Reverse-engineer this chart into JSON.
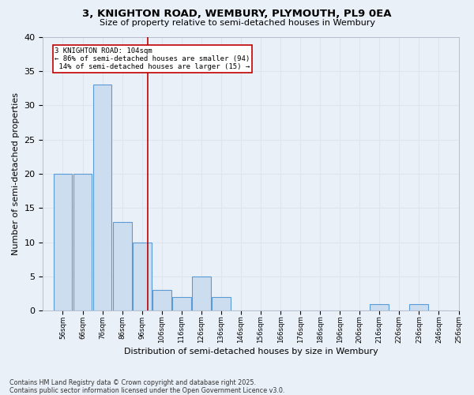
{
  "title_line1": "3, KNIGHTON ROAD, WEMBURY, PLYMOUTH, PL9 0EA",
  "title_line2": "Size of property relative to semi-detached houses in Wembury",
  "bins_left": [
    56,
    66,
    76,
    86,
    96,
    106,
    116,
    126,
    136,
    146,
    156,
    166,
    176,
    186,
    196,
    206,
    216,
    226,
    236,
    246
  ],
  "counts": [
    20,
    20,
    33,
    13,
    10,
    3,
    2,
    5,
    2,
    0,
    0,
    0,
    0,
    0,
    0,
    0,
    1,
    0,
    1,
    0
  ],
  "bar_color": "#ccddf0",
  "bar_edge_color": "#5b9bd5",
  "grid_color": "#dce6f1",
  "vline_x": 104,
  "vline_color": "#c00000",
  "annotation_line1": "3 KNIGHTON ROAD: 104sqm",
  "annotation_line2": "← 86% of semi-detached houses are smaller (94)",
  "annotation_line3": " 14% of semi-detached houses are larger (15) →",
  "annotation_box_color": "#ffffff",
  "annotation_box_edge": "#c00000",
  "xlabel": "Distribution of semi-detached houses by size in Wembury",
  "ylabel": "Number of semi-detached properties",
  "tick_labels": [
    "56sqm",
    "66sqm",
    "76sqm",
    "86sqm",
    "96sqm",
    "106sqm",
    "116sqm",
    "126sqm",
    "136sqm",
    "146sqm",
    "156sqm",
    "166sqm",
    "176sqm",
    "186sqm",
    "196sqm",
    "206sqm",
    "216sqm",
    "226sqm",
    "236sqm",
    "246sqm",
    "256sqm"
  ],
  "footnote_line1": "Contains HM Land Registry data © Crown copyright and database right 2025.",
  "footnote_line2": "Contains public sector information licensed under the Open Government Licence v3.0.",
  "ylim": [
    0,
    40
  ],
  "yticks": [
    0,
    5,
    10,
    15,
    20,
    25,
    30,
    35,
    40
  ],
  "xlim_left": 51,
  "xlim_right": 261,
  "bg_color": "#eaf0f8",
  "bin_width": 10
}
